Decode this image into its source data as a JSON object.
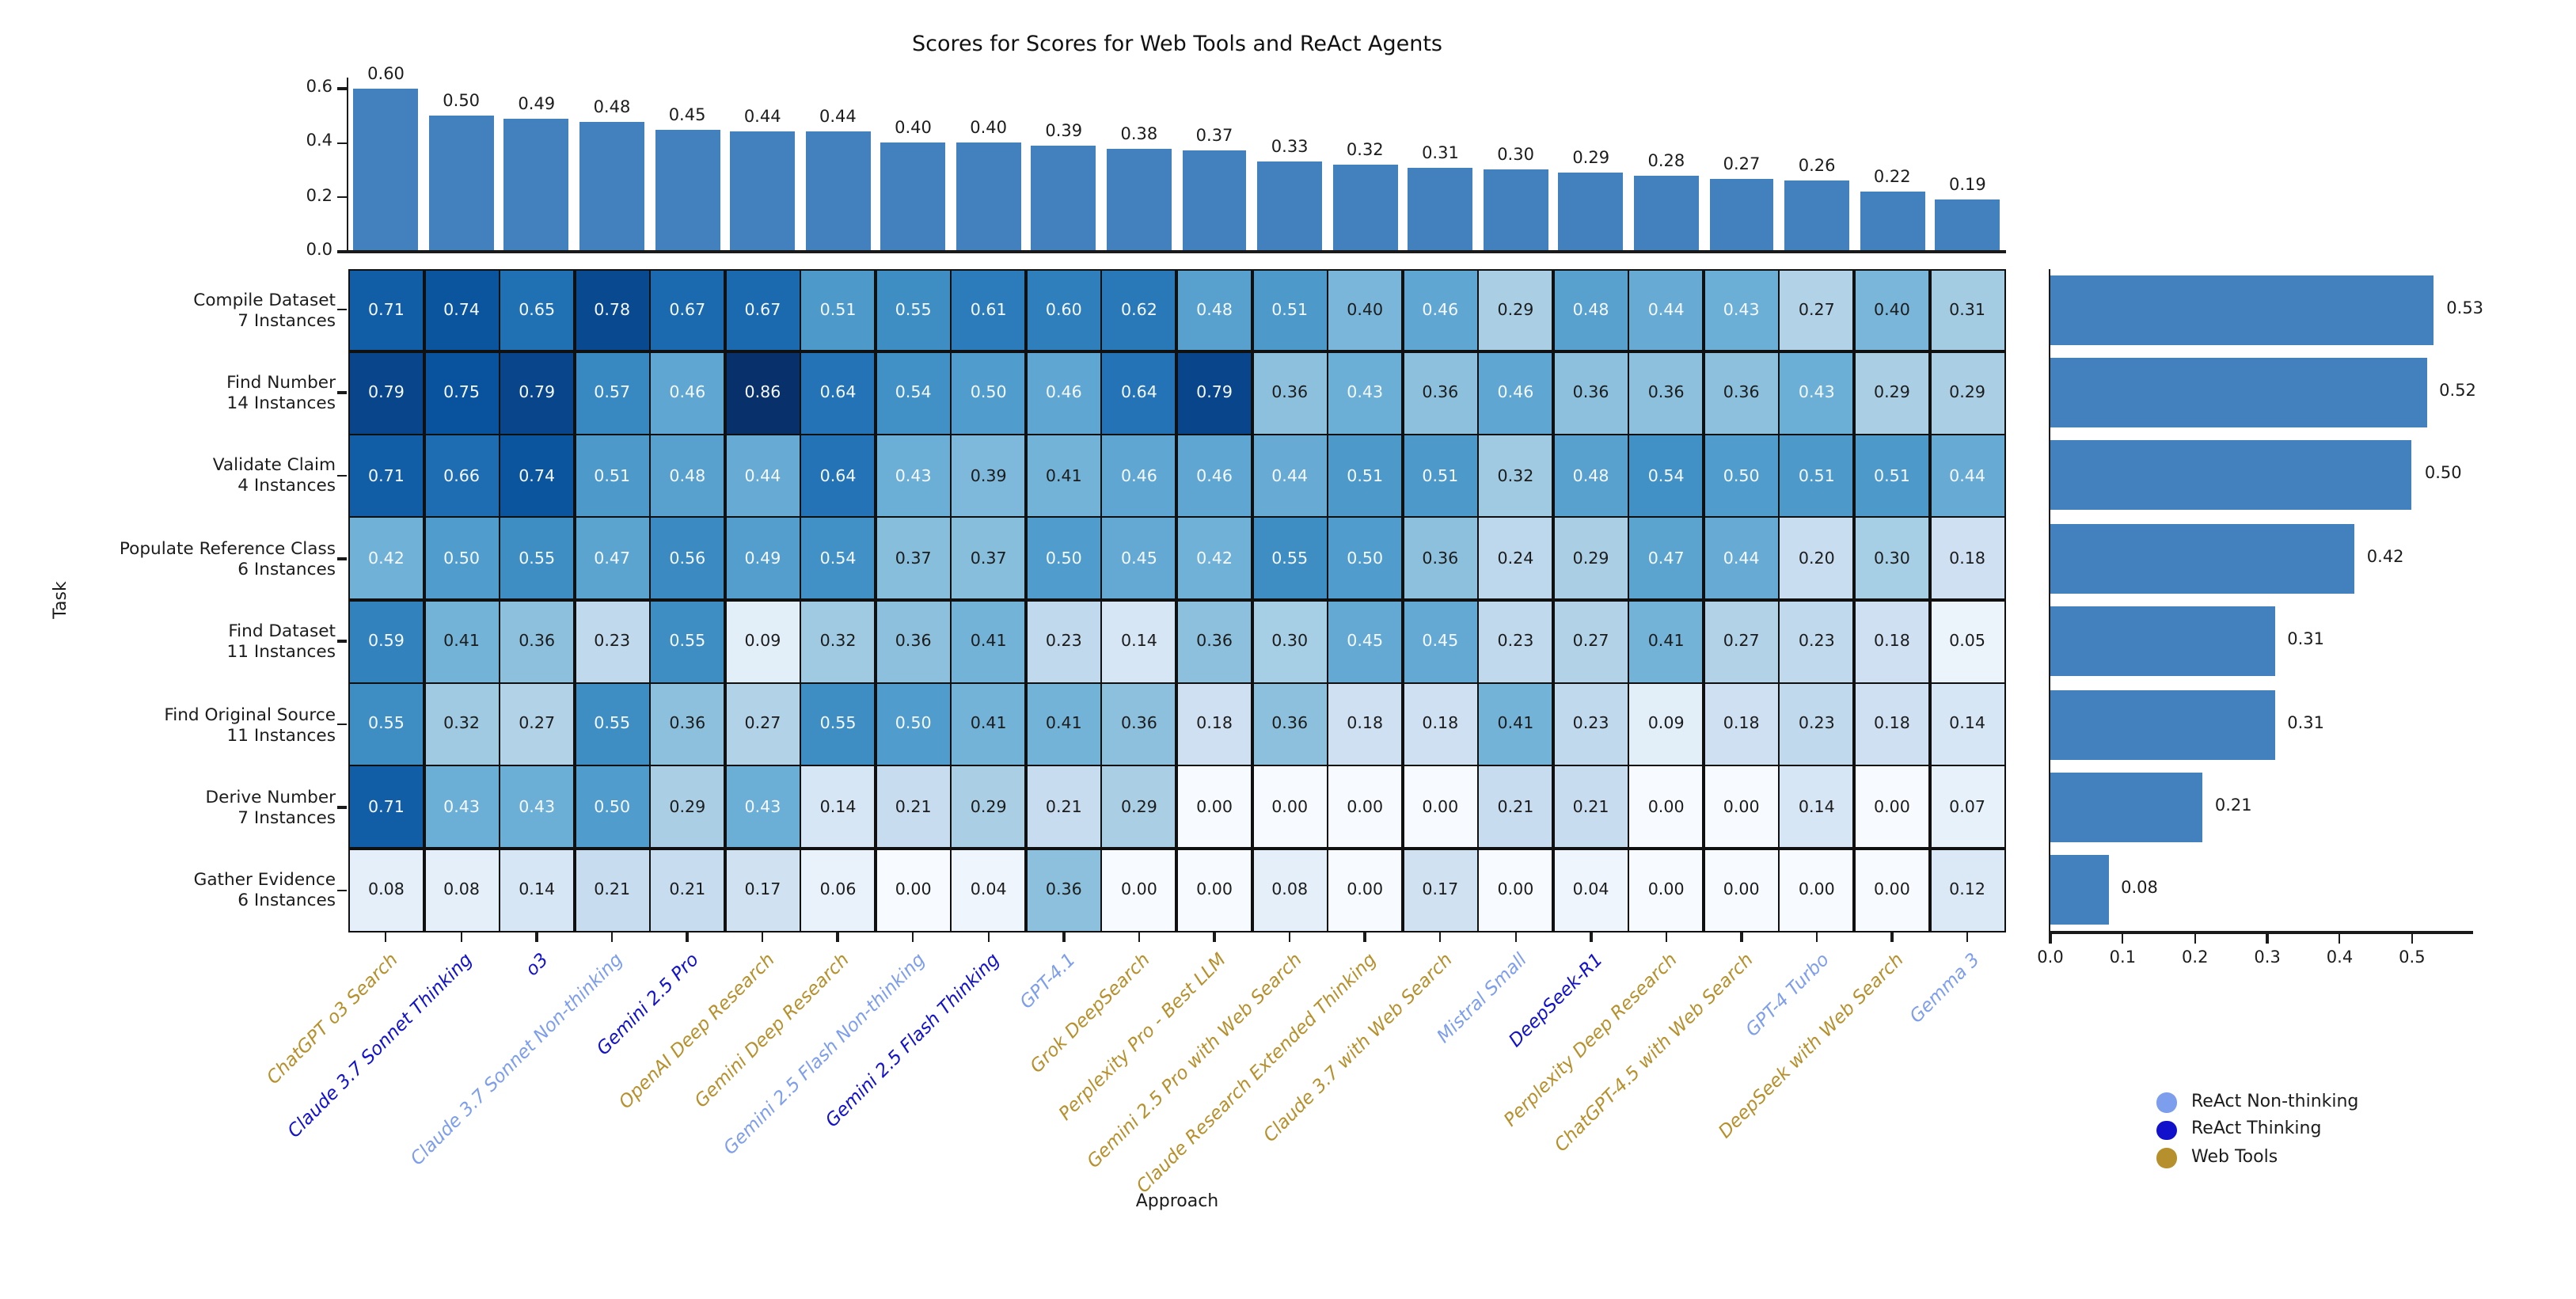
{
  "chart_data": {
    "type": "heatmap",
    "title": "Scores for Scores for Web Tools and ReAct Agents",
    "xlabel": "Approach",
    "ylabel": "Task",
    "colormap": "Blues",
    "vmin": 0.0,
    "vmax": 0.86,
    "bar_color": "#4380be",
    "category_colors": {
      "nonthinking": "#7d9ded",
      "thinking": "#1111cc",
      "web": "#b6902c"
    },
    "columns": [
      {
        "label": "ChatGPT o3 Search",
        "category": "web"
      },
      {
        "label": "Claude 3.7 Sonnet Thinking",
        "category": "thinking"
      },
      {
        "label": "o3",
        "category": "thinking"
      },
      {
        "label": "Claude 3.7 Sonnet Non-thinking",
        "category": "nonthinking"
      },
      {
        "label": "Gemini 2.5 Pro",
        "category": "thinking"
      },
      {
        "label": "OpenAI Deep Research",
        "category": "web"
      },
      {
        "label": "Gemini Deep Research",
        "category": "web"
      },
      {
        "label": "Gemini 2.5 Flash Non-thinking",
        "category": "nonthinking"
      },
      {
        "label": "Gemini 2.5 Flash Thinking",
        "category": "thinking"
      },
      {
        "label": "GPT-4.1",
        "category": "nonthinking"
      },
      {
        "label": "Grok DeepSearch",
        "category": "web"
      },
      {
        "label": "Perplexity Pro - Best LLM",
        "category": "web"
      },
      {
        "label": "Gemini 2.5 Pro with Web Search",
        "category": "web"
      },
      {
        "label": "Claude Research Extended Thinking",
        "category": "web"
      },
      {
        "label": "Claude 3.7 with Web Search",
        "category": "web"
      },
      {
        "label": "Mistral Small",
        "category": "nonthinking"
      },
      {
        "label": "DeepSeek-R1",
        "category": "thinking"
      },
      {
        "label": "Perplexity Deep Research",
        "category": "web"
      },
      {
        "label": "ChatGPT-4.5 with Web Search",
        "category": "web"
      },
      {
        "label": "GPT-4 Turbo",
        "category": "nonthinking"
      },
      {
        "label": "DeepSeek with Web Search",
        "category": "web"
      },
      {
        "label": "Gemma 3",
        "category": "nonthinking"
      }
    ],
    "rows": [
      {
        "task": "Compile Dataset",
        "instances": "7 Instances"
      },
      {
        "task": "Find Number",
        "instances": "14 Instances"
      },
      {
        "task": "Validate Claim",
        "instances": "4 Instances"
      },
      {
        "task": "Populate Reference Class",
        "instances": "6 Instances"
      },
      {
        "task": "Find Dataset",
        "instances": "11 Instances"
      },
      {
        "task": "Find Original Source",
        "instances": "11 Instances"
      },
      {
        "task": "Derive Number",
        "instances": "7 Instances"
      },
      {
        "task": "Gather Evidence",
        "instances": "6 Instances"
      }
    ],
    "matrix": [
      [
        0.71,
        0.74,
        0.65,
        0.78,
        0.67,
        0.67,
        0.51,
        0.55,
        0.61,
        0.6,
        0.62,
        0.48,
        0.51,
        0.4,
        0.46,
        0.29,
        0.48,
        0.44,
        0.43,
        0.27,
        0.4,
        0.31
      ],
      [
        0.79,
        0.75,
        0.79,
        0.57,
        0.46,
        0.86,
        0.64,
        0.54,
        0.5,
        0.46,
        0.64,
        0.79,
        0.36,
        0.43,
        0.36,
        0.46,
        0.36,
        0.36,
        0.36,
        0.43,
        0.29,
        0.29
      ],
      [
        0.71,
        0.66,
        0.74,
        0.51,
        0.48,
        0.44,
        0.64,
        0.43,
        0.39,
        0.41,
        0.46,
        0.46,
        0.44,
        0.51,
        0.51,
        0.32,
        0.48,
        0.54,
        0.5,
        0.51,
        0.51,
        0.44
      ],
      [
        0.42,
        0.5,
        0.55,
        0.47,
        0.56,
        0.49,
        0.54,
        0.37,
        0.37,
        0.5,
        0.45,
        0.42,
        0.55,
        0.5,
        0.36,
        0.24,
        0.29,
        0.47,
        0.44,
        0.2,
        0.3,
        0.18
      ],
      [
        0.59,
        0.41,
        0.36,
        0.23,
        0.55,
        0.09,
        0.32,
        0.36,
        0.41,
        0.23,
        0.14,
        0.36,
        0.3,
        0.45,
        0.45,
        0.23,
        0.27,
        0.41,
        0.27,
        0.23,
        0.18,
        0.05
      ],
      [
        0.55,
        0.32,
        0.27,
        0.55,
        0.36,
        0.27,
        0.55,
        0.5,
        0.41,
        0.41,
        0.36,
        0.18,
        0.36,
        0.18,
        0.18,
        0.41,
        0.23,
        0.09,
        0.18,
        0.23,
        0.18,
        0.14
      ],
      [
        0.71,
        0.43,
        0.43,
        0.5,
        0.29,
        0.43,
        0.14,
        0.21,
        0.29,
        0.21,
        0.29,
        0.0,
        0.0,
        0.0,
        0.0,
        0.21,
        0.21,
        0.0,
        0.0,
        0.14,
        0.0,
        0.07
      ],
      [
        0.08,
        0.08,
        0.14,
        0.21,
        0.21,
        0.17,
        0.06,
        0.0,
        0.04,
        0.36,
        0.0,
        0.0,
        0.08,
        0.0,
        0.17,
        0.0,
        0.04,
        0.0,
        0.0,
        0.0,
        0.0,
        0.12
      ]
    ],
    "column_means": [
      0.6,
      0.5,
      0.49,
      0.48,
      0.45,
      0.44,
      0.44,
      0.4,
      0.4,
      0.39,
      0.38,
      0.37,
      0.33,
      0.32,
      0.31,
      0.3,
      0.29,
      0.28,
      0.27,
      0.26,
      0.22,
      0.19
    ],
    "row_means": [
      0.53,
      0.52,
      0.5,
      0.42,
      0.31,
      0.31,
      0.21,
      0.08
    ],
    "top_axis": {
      "ticks": [
        "0.0",
        "0.2",
        "0.4",
        "0.6"
      ],
      "max": 0.64
    },
    "right_axis": {
      "ticks": [
        "0.0",
        "0.1",
        "0.2",
        "0.3",
        "0.4",
        "0.5"
      ],
      "max": 0.58
    },
    "legend": [
      {
        "label": "ReAct Non-thinking",
        "category": "nonthinking"
      },
      {
        "label": "ReAct Thinking",
        "category": "thinking"
      },
      {
        "label": "Web Tools",
        "category": "web"
      }
    ]
  }
}
